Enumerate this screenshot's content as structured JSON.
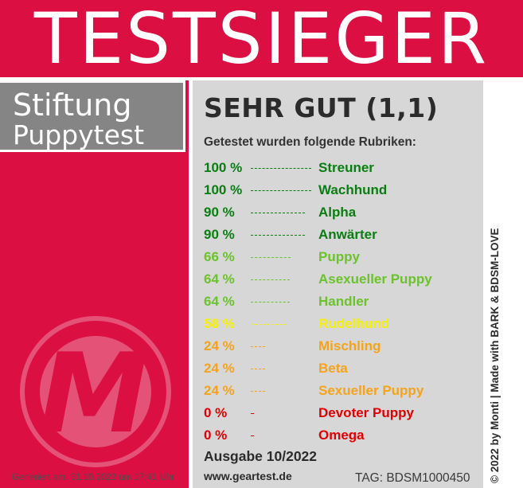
{
  "banner": {
    "title": "TESTSIEGER"
  },
  "brand": {
    "line1": "Stiftung",
    "line2": "Puppytest"
  },
  "logo": {
    "letter": "M"
  },
  "result": {
    "grade": "SEHR GUT (1,1)",
    "criteria_label": "Getestet wurden folgende Rubriken:",
    "rows": [
      {
        "percent": "100 %",
        "value": 100,
        "name": "Streuner",
        "color": "#0a7d12"
      },
      {
        "percent": "100 %",
        "value": 100,
        "name": "Wachhund",
        "color": "#0a7d12"
      },
      {
        "percent": "90 %",
        "value": 90,
        "name": "Alpha",
        "color": "#0a7d12"
      },
      {
        "percent": "90 %",
        "value": 90,
        "name": "Anwärter",
        "color": "#0a7d12"
      },
      {
        "percent": "66 %",
        "value": 66,
        "name": "Puppy",
        "color": "#6bc22c"
      },
      {
        "percent": "64 %",
        "value": 64,
        "name": "Asexueller Puppy",
        "color": "#6bc22c"
      },
      {
        "percent": "64 %",
        "value": 64,
        "name": "Handler",
        "color": "#6bc22c"
      },
      {
        "percent": "58 %",
        "value": 58,
        "name": "Rudelhund",
        "color": "#f5f000"
      },
      {
        "percent": "24 %",
        "value": 24,
        "name": "Mischling",
        "color": "#f5a31a"
      },
      {
        "percent": "24 %",
        "value": 24,
        "name": "Beta",
        "color": "#f5a31a"
      },
      {
        "percent": "24 %",
        "value": 24,
        "name": "Sexueller Puppy",
        "color": "#f5a31a"
      },
      {
        "percent": "0 %",
        "value": 0,
        "name": "Devoter Puppy",
        "color": "#e00000"
      },
      {
        "percent": "0 %",
        "value": 0,
        "name": "Omega",
        "color": "#e00000"
      }
    ],
    "issue": "Ausgabe 10/2022",
    "website": "www.geartest.de",
    "tag": "TAG: BDSM1000450"
  },
  "footer": {
    "generated": "Generiert am: 31.10.2022 um 17:41 Uhr",
    "credit": "© 2022 by Monti | Made with BARK & BDSM-LOVE"
  },
  "colors": {
    "accent": "#dc0f42",
    "brand_box": "#858585",
    "panel": "#d8d7d8"
  }
}
